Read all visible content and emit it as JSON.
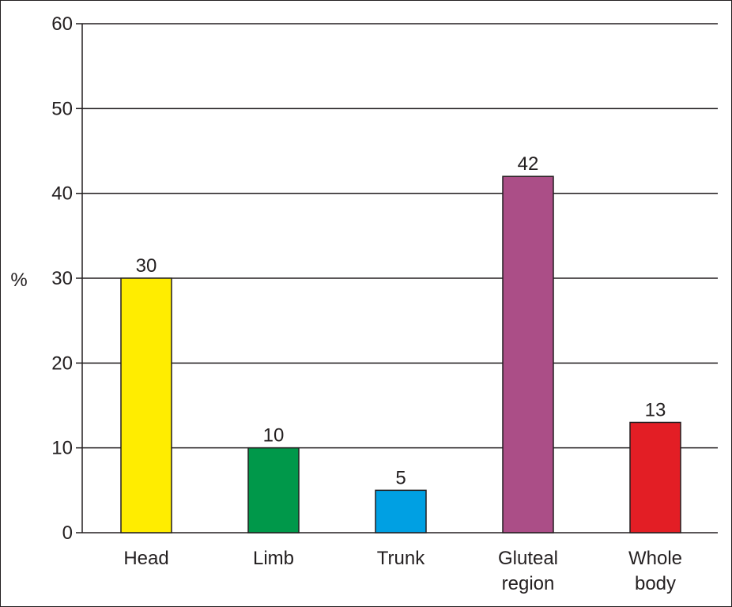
{
  "chart_data": {
    "type": "bar",
    "ylabel": "%",
    "xlabel": "",
    "ylim": [
      0,
      60
    ],
    "yticks": [
      0,
      10,
      20,
      30,
      40,
      50,
      60
    ],
    "grid": true,
    "categories": [
      [
        "Head"
      ],
      [
        "Limb"
      ],
      [
        "Trunk"
      ],
      [
        "Gluteal",
        "region"
      ],
      [
        "Whole",
        "body"
      ]
    ],
    "values": [
      30,
      10,
      5,
      42,
      13
    ],
    "colors": [
      "#ffed00",
      "#00984a",
      "#00a0e3",
      "#ab4e87",
      "#e31e25"
    ]
  }
}
